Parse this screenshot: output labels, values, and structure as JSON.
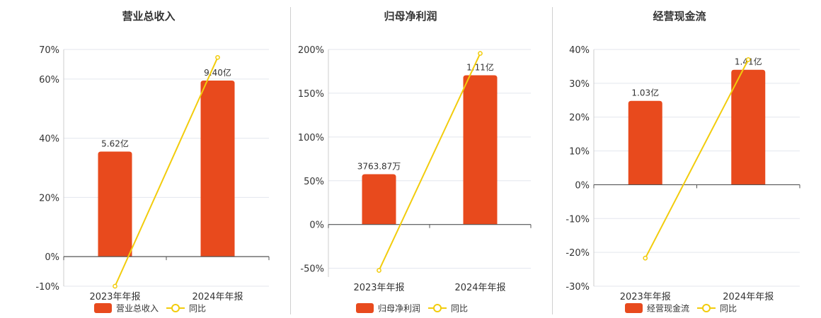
{
  "colors": {
    "bar": "#E84A1D",
    "line": "#F2CC0C",
    "grid": "#E3E6EE",
    "axis": "#555555"
  },
  "chart_data": [
    {
      "type": "bar",
      "title": "营业总收入",
      "categories": [
        "2023年年报",
        "2024年年报"
      ],
      "ylim": [
        -10,
        70
      ],
      "yticks": [
        -10,
        0,
        20,
        40,
        60,
        70
      ],
      "ytick_labels": [
        "-10%",
        "0%",
        "20%",
        "40%",
        "60%",
        "70%"
      ],
      "series": [
        {
          "name": "营业总收入",
          "kind": "bar",
          "values": [
            35.5,
            59.5
          ],
          "labels": [
            "5.62亿",
            "9.40亿"
          ]
        },
        {
          "name": "同比",
          "kind": "line",
          "values": [
            -10,
            67.3
          ]
        }
      ],
      "legend": "bottom"
    },
    {
      "type": "bar",
      "title": "归母净利润",
      "categories": [
        "2023年年报",
        "2024年年报"
      ],
      "ylim": [
        -60,
        200
      ],
      "yticks": [
        -50,
        0,
        50,
        100,
        150,
        200
      ],
      "ytick_labels": [
        "-50%",
        "0%",
        "50%",
        "100%",
        "150%",
        "200%"
      ],
      "series": [
        {
          "name": "归母净利润",
          "kind": "bar",
          "values": [
            57.5,
            170.5
          ],
          "labels": [
            "3763.87万",
            "1.11亿"
          ]
        },
        {
          "name": "同比",
          "kind": "line",
          "values": [
            -52.4,
            195.5
          ]
        }
      ],
      "legend": "bottom"
    },
    {
      "type": "bar",
      "title": "经营现金流",
      "categories": [
        "2023年年报",
        "2024年年报"
      ],
      "ylim": [
        -30,
        40
      ],
      "yticks": [
        -30,
        -20,
        -10,
        0,
        10,
        20,
        30,
        40
      ],
      "ytick_labels": [
        "-30%",
        "-20%",
        "-10%",
        "0%",
        "10%",
        "20%",
        "30%",
        "40%"
      ],
      "series": [
        {
          "name": "经营现金流",
          "kind": "bar",
          "values": [
            24.8,
            34.0
          ],
          "labels": [
            "1.03亿",
            "1.41亿"
          ]
        },
        {
          "name": "同比",
          "kind": "line",
          "values": [
            -21.7,
            37.0
          ]
        }
      ],
      "legend": "bottom"
    }
  ]
}
